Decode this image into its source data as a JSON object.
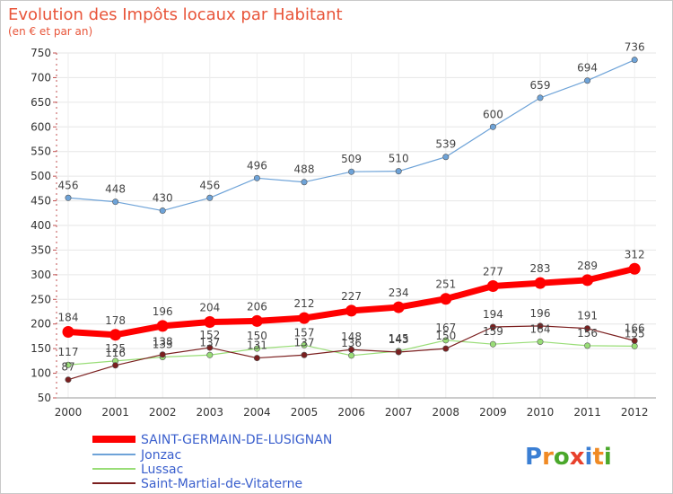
{
  "title": "Evolution des Impôts locaux par Habitant",
  "subtitle": "(en € et par an)",
  "brand": {
    "letters": [
      "P",
      "r",
      "o",
      "x",
      "i",
      "t",
      "i"
    ],
    "colors": [
      "#3b7fd4",
      "#f08a24",
      "#4aa82b",
      "#e8412c",
      "#3b7fd4",
      "#f08a24",
      "#4aa82b"
    ]
  },
  "chart_data": {
    "type": "line",
    "title": "Evolution des Impôts locaux par Habitant",
    "subtitle": "(en € et par an)",
    "xlabel": "",
    "ylabel": "",
    "ylim": [
      50,
      750
    ],
    "yticks": [
      50,
      100,
      150,
      200,
      250,
      300,
      350,
      400,
      450,
      500,
      550,
      600,
      650,
      700,
      750
    ],
    "categories": [
      "2000",
      "2001",
      "2002",
      "2003",
      "2004",
      "2005",
      "2006",
      "2007",
      "2008",
      "2009",
      "2010",
      "2011",
      "2012"
    ],
    "grid": true,
    "legend_position": "bottom-left",
    "series": [
      {
        "name": "SAINT-GERMAIN-DE-LUSIGNAN",
        "color": "#ff0000",
        "values": [
          184,
          178,
          196,
          204,
          206,
          212,
          227,
          234,
          251,
          277,
          283,
          289,
          312
        ],
        "labels": [
          "184",
          "178",
          "196",
          "204",
          "206",
          "212",
          "227",
          "234",
          "251",
          "277",
          "283",
          "289",
          "312"
        ]
      },
      {
        "name": "Jonzac",
        "color": "#6ea3d8",
        "values": [
          456,
          448,
          430,
          456,
          496,
          488,
          509,
          510,
          539,
          600,
          659,
          694,
          736
        ],
        "labels": [
          "456",
          "448",
          "430",
          "456",
          "496",
          "488",
          "509",
          "510",
          "539",
          "600",
          "659",
          "694",
          "736"
        ]
      },
      {
        "name": "Lussac",
        "color": "#99dd77",
        "values": [
          117,
          125,
          133,
          137,
          150,
          157,
          136,
          145,
          167,
          159,
          164,
          156,
          155
        ],
        "labels": [
          "117",
          "125",
          "133",
          "137",
          "150",
          "157",
          "136",
          "145",
          "167",
          "159",
          "164",
          "156",
          "155"
        ]
      },
      {
        "name": "Saint-Martial-de-Vitaterne",
        "color": "#7b1f1f",
        "values": [
          87,
          116,
          138,
          152,
          131,
          137,
          148,
          143,
          150,
          194,
          196,
          191,
          166
        ],
        "labels": [
          "87",
          "116",
          "138",
          "152",
          "131",
          "137",
          "148",
          "143",
          "150",
          "194",
          "196",
          "191",
          "166"
        ]
      }
    ]
  }
}
